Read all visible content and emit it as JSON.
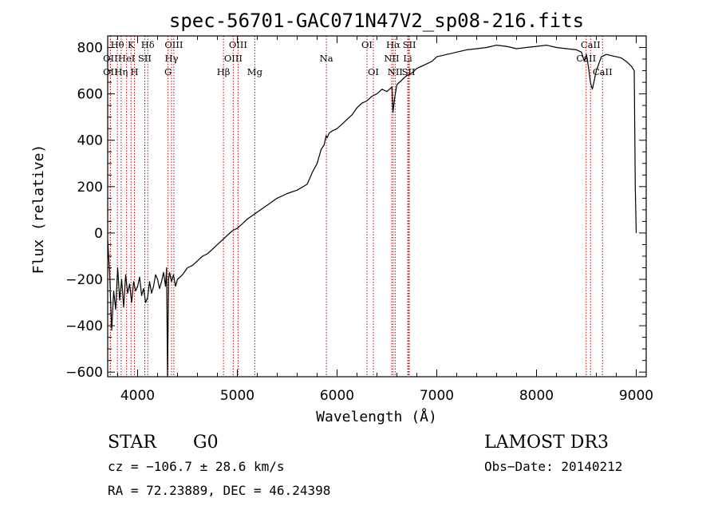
{
  "chart_data": {
    "type": "line",
    "title": "spec-56701-GAC071N47V2_sp08-216.fits",
    "xlabel": "Wavelength (Å)",
    "ylabel": "Flux (relative)",
    "xlim": [
      3700,
      9100
    ],
    "ylim": [
      -620,
      850
    ],
    "x_ticks": [
      4000,
      5000,
      6000,
      7000,
      8000,
      9000
    ],
    "y_ticks": [
      -600,
      -400,
      -200,
      0,
      200,
      400,
      600,
      800
    ],
    "grid": false,
    "series": [
      {
        "name": "spectrum",
        "x": [
          3700,
          3720,
          3740,
          3760,
          3780,
          3800,
          3820,
          3840,
          3860,
          3880,
          3900,
          3920,
          3940,
          3960,
          3980,
          4000,
          4020,
          4040,
          4060,
          4080,
          4100,
          4120,
          4140,
          4160,
          4180,
          4200,
          4220,
          4240,
          4260,
          4280,
          4290,
          4300,
          4310,
          4320,
          4340,
          4360,
          4380,
          4400,
          4450,
          4500,
          4550,
          4600,
          4650,
          4700,
          4750,
          4800,
          4850,
          4900,
          4950,
          5000,
          5050,
          5100,
          5150,
          5200,
          5300,
          5400,
          5500,
          5600,
          5700,
          5750,
          5800,
          5840,
          5870,
          5890,
          5900,
          5920,
          5950,
          6000,
          6050,
          6100,
          6150,
          6200,
          6250,
          6300,
          6350,
          6400,
          6450,
          6500,
          6550,
          6560,
          6580,
          6600,
          6650,
          6700,
          6750,
          6800,
          6850,
          6900,
          6950,
          7000,
          7050,
          7100,
          7150,
          7200,
          7300,
          7400,
          7500,
          7600,
          7700,
          7800,
          7900,
          8000,
          8100,
          8200,
          8300,
          8400,
          8450,
          8480,
          8500,
          8520,
          8540,
          8560,
          8600,
          8650,
          8700,
          8750,
          8800,
          8850,
          8900,
          8950,
          8980,
          8990,
          9000
        ],
        "y": [
          -30,
          -180,
          -420,
          -250,
          -330,
          -150,
          -290,
          -200,
          -320,
          -180,
          -260,
          -220,
          -300,
          -210,
          -250,
          -230,
          -190,
          -270,
          -240,
          -300,
          -280,
          -210,
          -260,
          -230,
          -180,
          -200,
          -240,
          -210,
          -170,
          -230,
          -150,
          -620,
          -200,
          -170,
          -210,
          -180,
          -230,
          -200,
          -180,
          -150,
          -140,
          -120,
          -100,
          -90,
          -70,
          -50,
          -30,
          -10,
          10,
          20,
          40,
          60,
          75,
          90,
          120,
          150,
          170,
          185,
          210,
          260,
          300,
          360,
          380,
          420,
          410,
          430,
          440,
          450,
          470,
          490,
          510,
          540,
          560,
          570,
          590,
          600,
          620,
          610,
          630,
          520,
          590,
          640,
          660,
          680,
          690,
          710,
          720,
          730,
          740,
          760,
          765,
          770,
          775,
          780,
          790,
          795,
          800,
          810,
          805,
          795,
          800,
          805,
          810,
          800,
          795,
          790,
          780,
          740,
          770,
          720,
          650,
          620,
          700,
          760,
          770,
          765,
          760,
          755,
          740,
          720,
          700,
          200,
          0
        ]
      }
    ],
    "line_markers": [
      {
        "label": "Hθ",
        "x": 3797,
        "row": 0
      },
      {
        "label": "K",
        "x": 3934,
        "row": 0
      },
      {
        "label": "Hδ",
        "x": 4102,
        "row": 0
      },
      {
        "label": "OIII",
        "x": 4363,
        "row": 0
      },
      {
        "label": "OIII",
        "x": 5007,
        "row": 0
      },
      {
        "label": "OI",
        "x": 6300,
        "row": 0
      },
      {
        "label": "Hα",
        "x": 6563,
        "row": 0
      },
      {
        "label": "SII",
        "x": 6725,
        "row": 0
      },
      {
        "label": "CaII",
        "x": 8542,
        "row": 0
      },
      {
        "label": "OII",
        "x": 3727,
        "row": 1
      },
      {
        "label": "HeI",
        "x": 3889,
        "row": 1
      },
      {
        "label": "SII",
        "x": 4072,
        "row": 1
      },
      {
        "label": "Hγ",
        "x": 4340,
        "row": 1
      },
      {
        "label": "OIII",
        "x": 4959,
        "row": 1
      },
      {
        "label": "Na",
        "x": 5893,
        "row": 1
      },
      {
        "label": "NII",
        "x": 6548,
        "row": 1
      },
      {
        "label": "Li",
        "x": 6708,
        "row": 1
      },
      {
        "label": "CaII",
        "x": 8498,
        "row": 1
      },
      {
        "label": "OII",
        "x": 3727,
        "row": 2
      },
      {
        "label": "Hη",
        "x": 3835,
        "row": 2
      },
      {
        "label": "H",
        "x": 3968,
        "row": 2
      },
      {
        "label": "G",
        "x": 4305,
        "row": 2
      },
      {
        "label": "Hβ",
        "x": 4861,
        "row": 2
      },
      {
        "label": "Mg",
        "x": 5175,
        "row": 2
      },
      {
        "label": "OI",
        "x": 6364,
        "row": 2
      },
      {
        "label": "NII",
        "x": 6583,
        "row": 2
      },
      {
        "label": "SII",
        "x": 6717,
        "row": 2
      },
      {
        "label": "CaII",
        "x": 8662,
        "row": 2
      }
    ]
  },
  "info": {
    "object_class": "STAR",
    "subclass": "G0",
    "survey": "LAMOST DR3",
    "redshift": "cz = −106.7 ± 28.6 km/s",
    "obs_date": "Obs−Date: 20140212",
    "coords": "RA =  72.23889, DEC =  46.24398"
  },
  "colors": {
    "line_marker": "#cc0000",
    "spectrum": "#000000",
    "axes": "#000000"
  }
}
